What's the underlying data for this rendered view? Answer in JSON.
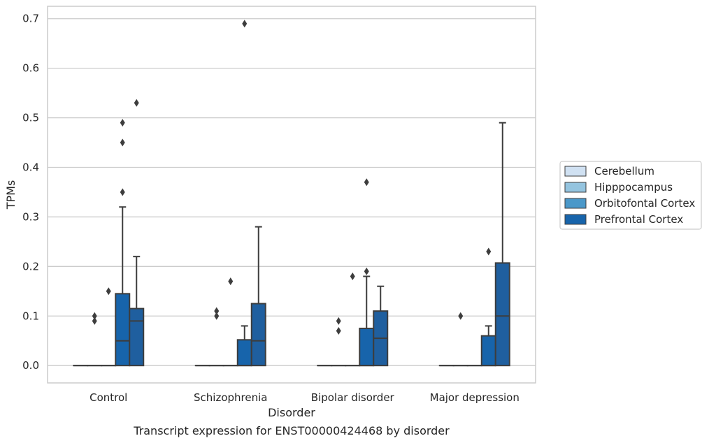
{
  "chart_data": {
    "type": "box",
    "caption": "Transcript expression for ENST00000424468 by disorder",
    "xlabel": "Disorder",
    "ylabel": "TPMs",
    "ylim": [
      -0.035,
      0.725
    ],
    "yticks": [
      0.0,
      0.1,
      0.2,
      0.3,
      0.4,
      0.5,
      0.6,
      0.7
    ],
    "ytick_labels": [
      "0.0",
      "0.1",
      "0.2",
      "0.3",
      "0.4",
      "0.5",
      "0.6",
      "0.7"
    ],
    "grid": "horizontal",
    "legend_position": "right",
    "categories": [
      "Control",
      "Schizophrenia",
      "Bipolar disorder",
      "Major depression"
    ],
    "series": [
      {
        "name": "Cerebellum",
        "color": "#d0e1f2",
        "boxes": [
          {
            "q1": 0,
            "median": 0,
            "q3": 0,
            "whisker_low": 0,
            "whisker_high": 0,
            "outliers": []
          },
          {
            "q1": 0,
            "median": 0,
            "q3": 0,
            "whisker_low": 0,
            "whisker_high": 0,
            "outliers": []
          },
          {
            "q1": 0,
            "median": 0,
            "q3": 0,
            "whisker_low": 0,
            "whisker_high": 0,
            "outliers": []
          },
          {
            "q1": 0,
            "median": 0,
            "q3": 0,
            "whisker_low": 0,
            "whisker_high": 0,
            "outliers": []
          }
        ]
      },
      {
        "name": "Hipppocampus",
        "color": "#94c4df",
        "boxes": [
          {
            "q1": 0,
            "median": 0,
            "q3": 0,
            "whisker_low": 0,
            "whisker_high": 0,
            "outliers": [
              0.09,
              0.1
            ]
          },
          {
            "q1": 0,
            "median": 0,
            "q3": 0,
            "whisker_low": 0,
            "whisker_high": 0,
            "outliers": [
              0.1,
              0.11
            ]
          },
          {
            "q1": 0,
            "median": 0,
            "q3": 0,
            "whisker_low": 0,
            "whisker_high": 0,
            "outliers": [
              0.07,
              0.09
            ]
          },
          {
            "q1": 0,
            "median": 0,
            "q3": 0,
            "whisker_low": 0,
            "whisker_high": 0,
            "outliers": [
              0.1
            ]
          }
        ]
      },
      {
        "name": "Orbitofontal Cortex",
        "color": "#4a98c9",
        "boxes": [
          {
            "q1": 0,
            "median": 0,
            "q3": 0,
            "whisker_low": 0,
            "whisker_high": 0,
            "outliers": [
              0.15
            ]
          },
          {
            "q1": 0,
            "median": 0,
            "q3": 0,
            "whisker_low": 0,
            "whisker_high": 0,
            "outliers": [
              0.17
            ]
          },
          {
            "q1": 0,
            "median": 0,
            "q3": 0,
            "whisker_low": 0,
            "whisker_high": 0,
            "outliers": [
              0.18
            ]
          },
          {
            "q1": 0,
            "median": 0,
            "q3": 0,
            "whisker_low": 0,
            "whisker_high": 0,
            "outliers": []
          }
        ]
      },
      {
        "name": "Prefrontal Cortex",
        "color": "#1764ab",
        "boxes": [
          {
            "q1": 0,
            "median": 0.05,
            "q3": 0.145,
            "whisker_low": 0,
            "whisker_high": 0.32,
            "outliers": [
              0.35,
              0.45,
              0.49
            ]
          },
          {
            "q1": 0,
            "median": 0,
            "q3": 0.052,
            "whisker_low": 0,
            "whisker_high": 0.08,
            "outliers": [
              0.69
            ]
          },
          {
            "q1": 0,
            "median": 0,
            "q3": 0.075,
            "whisker_low": 0,
            "whisker_high": 0.18,
            "outliers": [
              0.19,
              0.37
            ]
          },
          {
            "q1": 0,
            "median": 0,
            "q3": 0.06,
            "whisker_low": 0,
            "whisker_high": 0.08,
            "outliers": [
              0.23
            ]
          }
        ]
      },
      {
        "name": "",
        "color": "#1f5f9f",
        "boxes": [
          {
            "q1": 0,
            "median": 0.09,
            "q3": 0.115,
            "whisker_low": 0,
            "whisker_high": 0.22,
            "outliers": [
              0.53
            ]
          },
          {
            "q1": 0,
            "median": 0.05,
            "q3": 0.125,
            "whisker_low": 0,
            "whisker_high": 0.28,
            "outliers": []
          },
          {
            "q1": 0,
            "median": 0.055,
            "q3": 0.11,
            "whisker_low": 0,
            "whisker_high": 0.16,
            "outliers": []
          },
          {
            "q1": 0,
            "median": 0.1,
            "q3": 0.207,
            "whisker_low": 0,
            "whisker_high": 0.49,
            "outliers": []
          }
        ]
      }
    ]
  }
}
